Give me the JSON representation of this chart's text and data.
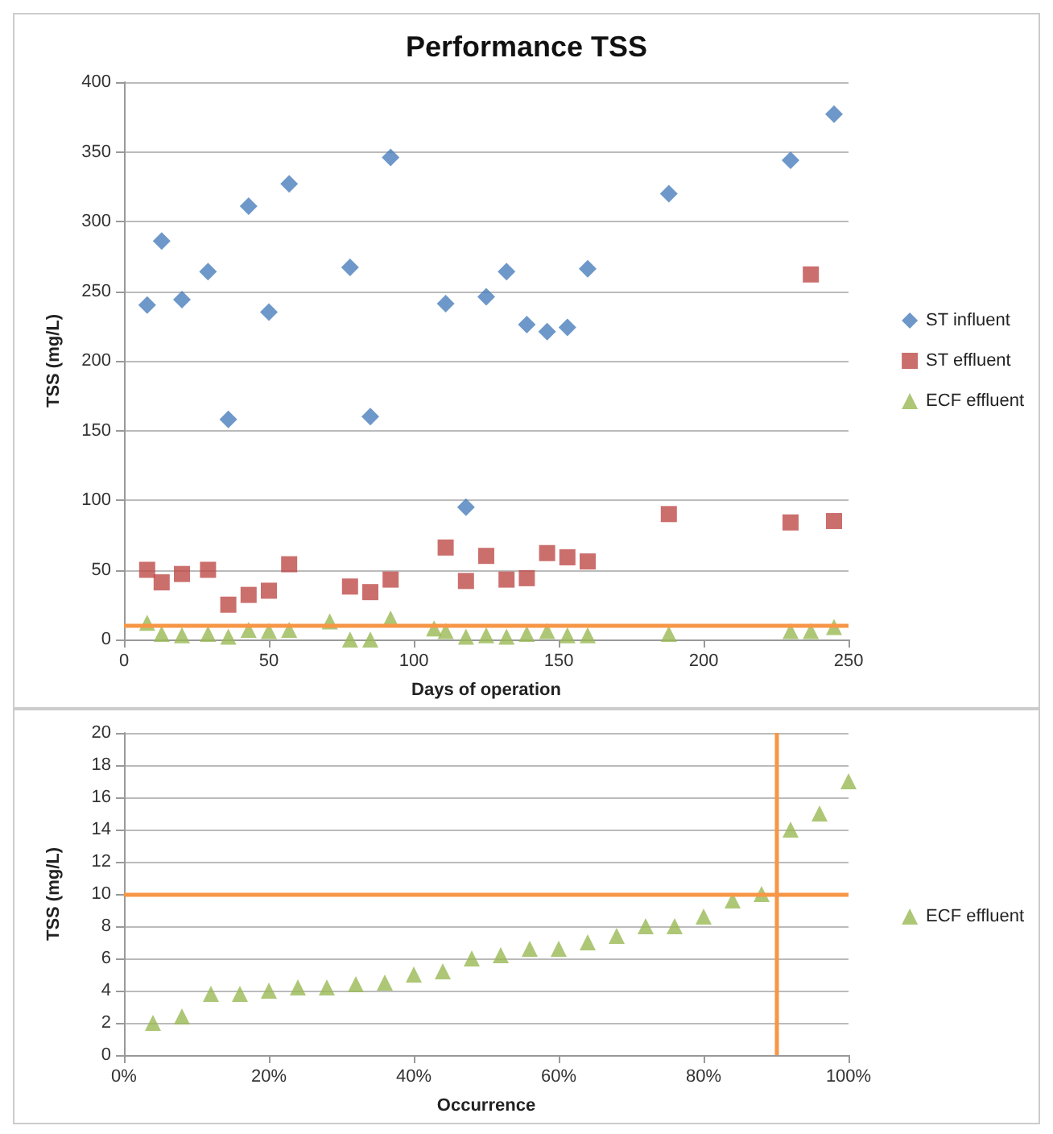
{
  "chart_data": [
    {
      "type": "scatter",
      "title": "Performance TSS",
      "xlabel": "Days of operation",
      "ylabel": "TSS (mg/L)",
      "xlim": [
        0,
        250
      ],
      "xticks": [
        0,
        50,
        100,
        150,
        200,
        250
      ],
      "ylim": [
        0,
        400
      ],
      "yticks": [
        0,
        50,
        100,
        150,
        200,
        250,
        300,
        350,
        400
      ],
      "grid": "y",
      "legend": "right",
      "series": [
        {
          "name": "ST influent",
          "color": "#4a7ebb",
          "marker": "diamond",
          "x": [
            8,
            13,
            20,
            29,
            36,
            43,
            50,
            57,
            78,
            85,
            92,
            111,
            118,
            125,
            132,
            139,
            146,
            153,
            160,
            188,
            230,
            245
          ],
          "values": [
            240,
            286,
            244,
            264,
            158,
            311,
            235,
            327,
            267,
            160,
            346,
            241,
            95,
            246,
            264,
            226,
            221,
            224,
            266,
            320,
            344,
            377
          ]
        },
        {
          "name": "ST effluent",
          "color": "#be4b48",
          "marker": "square",
          "x": [
            8,
            13,
            20,
            29,
            36,
            43,
            50,
            57,
            78,
            85,
            92,
            111,
            118,
            125,
            132,
            139,
            146,
            153,
            160,
            188,
            230,
            237,
            245
          ],
          "values": [
            50,
            41,
            47,
            50,
            25,
            32,
            35,
            54,
            38,
            34,
            43,
            66,
            42,
            60,
            43,
            44,
            62,
            59,
            56,
            90,
            84,
            262,
            85
          ]
        },
        {
          "name": "ECF effluent",
          "color": "#98b954",
          "marker": "triangle",
          "x": [
            8,
            13,
            20,
            29,
            36,
            43,
            50,
            57,
            71,
            78,
            85,
            92,
            107,
            111,
            118,
            125,
            132,
            139,
            146,
            153,
            160,
            188,
            230,
            237,
            245
          ],
          "values": [
            12,
            4,
            3,
            4,
            2,
            7,
            6,
            7,
            13,
            0,
            0,
            15,
            8,
            6,
            2,
            3,
            2,
            4,
            6,
            3,
            3,
            4,
            6,
            6,
            9
          ]
        }
      ],
      "ref_lines": [
        {
          "axis": "y",
          "value": 10,
          "color": "#f79646"
        }
      ]
    },
    {
      "type": "scatter",
      "xlabel": "Occurrence",
      "ylabel": "TSS (mg/L)",
      "xlim": [
        0,
        100
      ],
      "xticks": [
        {
          "value": 0,
          "label": "0%"
        },
        {
          "value": 20,
          "label": "20%"
        },
        {
          "value": 40,
          "label": "40%"
        },
        {
          "value": 60,
          "label": "60%"
        },
        {
          "value": 80,
          "label": "80%"
        },
        {
          "value": 100,
          "label": "100%"
        }
      ],
      "ylim": [
        0,
        20
      ],
      "yticks": [
        0,
        2,
        4,
        6,
        8,
        10,
        12,
        14,
        16,
        18,
        20
      ],
      "grid": "y",
      "legend": "right",
      "series": [
        {
          "name": "ECF effluent",
          "color": "#98b954",
          "marker": "triangle",
          "x": [
            4,
            8,
            12,
            16,
            20,
            24,
            28,
            32,
            36,
            40,
            44,
            48,
            52,
            56,
            60,
            64,
            68,
            72,
            76,
            80,
            84,
            88,
            92,
            96,
            100
          ],
          "values": [
            2,
            2.4,
            3.8,
            3.8,
            4,
            4.2,
            4.2,
            4.4,
            4.5,
            5,
            5.2,
            6,
            6.2,
            6.6,
            6.6,
            7,
            7.4,
            8,
            8,
            8.6,
            9.6,
            10,
            14,
            15,
            17
          ]
        }
      ],
      "ref_lines": [
        {
          "axis": "y",
          "value": 10,
          "color": "#f79646"
        },
        {
          "axis": "x",
          "value": 90,
          "color": "#f79646"
        }
      ]
    }
  ]
}
